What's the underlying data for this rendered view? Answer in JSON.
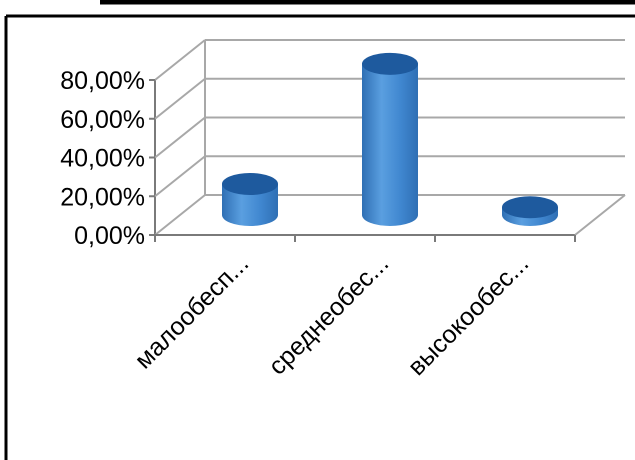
{
  "chart_data": {
    "type": "bar",
    "style": "3d-cylinder",
    "categories": [
      "малообесп...",
      "среднеобес...",
      "высокообес..."
    ],
    "values": [
      16,
      78,
      4
    ],
    "ylim": [
      0,
      80
    ],
    "yticks": [
      "0,00%",
      "20,00%",
      "40,00%",
      "60,00%",
      "80,00%"
    ],
    "grid": true,
    "legend": "none",
    "colors": {
      "bar": "#3f86cf",
      "bar_dark": "#2f6fb4",
      "bar_top": "#1e5a9e",
      "gridline": "#a8a8a8",
      "frame": "#000000"
    }
  }
}
